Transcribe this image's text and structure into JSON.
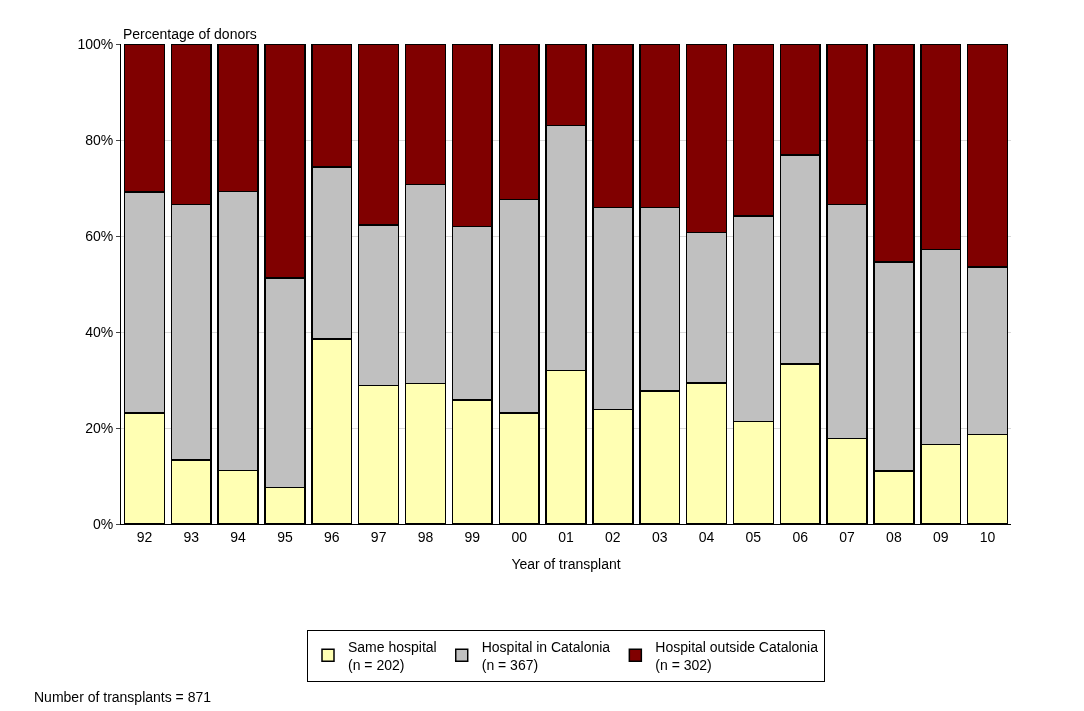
{
  "chart_data": {
    "type": "bar",
    "stacked": true,
    "xlabel": "Year of transplant",
    "ylabel": "Percentage of donors",
    "categories": [
      "92",
      "93",
      "94",
      "95",
      "96",
      "97",
      "98",
      "99",
      "00",
      "01",
      "02",
      "03",
      "04",
      "05",
      "06",
      "07",
      "08",
      "09",
      "10"
    ],
    "series": [
      {
        "name": "Same hospital\n(n = 202)",
        "color": "#ffffb3",
        "values": [
          23.1,
          13.3,
          11.1,
          7.6,
          38.5,
          28.9,
          29.3,
          25.8,
          23.1,
          32.0,
          23.9,
          27.7,
          29.4,
          21.4,
          33.3,
          17.8,
          11.0,
          16.6,
          18.6
        ]
      },
      {
        "name": "Hospital in Catalonia\n(n = 367)",
        "color": "#c0c0c0",
        "values": [
          46.1,
          53.3,
          58.2,
          43.6,
          35.9,
          33.4,
          41.4,
          36.2,
          44.5,
          51.0,
          42.0,
          38.2,
          31.3,
          42.8,
          43.6,
          48.8,
          43.6,
          40.6,
          34.9
        ]
      },
      {
        "name": "Hospital outside Catalonia\n(n = 302)",
        "color": "#800000",
        "values": [
          30.8,
          33.4,
          30.7,
          48.8,
          25.6,
          37.7,
          29.3,
          38.0,
          32.4,
          17.0,
          34.1,
          34.1,
          39.3,
          35.8,
          23.1,
          33.4,
          45.4,
          42.8,
          46.5
        ]
      }
    ],
    "ylim": [
      0,
      100
    ],
    "yticks": [
      {
        "value": 0,
        "label": "0%"
      },
      {
        "value": 20,
        "label": "20%"
      },
      {
        "value": 40,
        "label": "40%"
      },
      {
        "value": 60,
        "label": "60%"
      },
      {
        "value": 80,
        "label": "80%"
      },
      {
        "value": 100,
        "label": "100%"
      }
    ],
    "grid": "y",
    "legend": "bottom",
    "annotations": [
      "Number of transplants = 871"
    ]
  }
}
